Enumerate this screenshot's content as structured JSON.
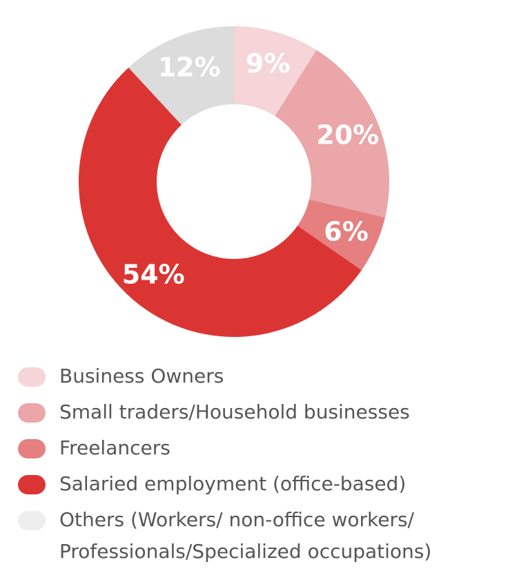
{
  "chart_data": {
    "type": "pie",
    "variant": "donut",
    "title": "",
    "slices": [
      {
        "label": "Business Owners",
        "value": 9,
        "display": "9%",
        "color": "#f5d5d7"
      },
      {
        "label": "Small traders/Household businesses",
        "value": 20,
        "display": "20%",
        "color": "#eaa6a8"
      },
      {
        "label": "Freelancers",
        "value": 6,
        "display": "6%",
        "color": "#e57f80"
      },
      {
        "label": "Salaried employment (office-based)",
        "value": 54,
        "display": "54%",
        "color": "#db3533"
      },
      {
        "label": "Others (Workers/ non-office workers/\nProfessionals/Specialized occupations)",
        "value": 12,
        "display": "12%",
        "color": "#dcdcdc",
        "legend_color": "#eeeeee"
      }
    ],
    "legend_position": "bottom"
  }
}
